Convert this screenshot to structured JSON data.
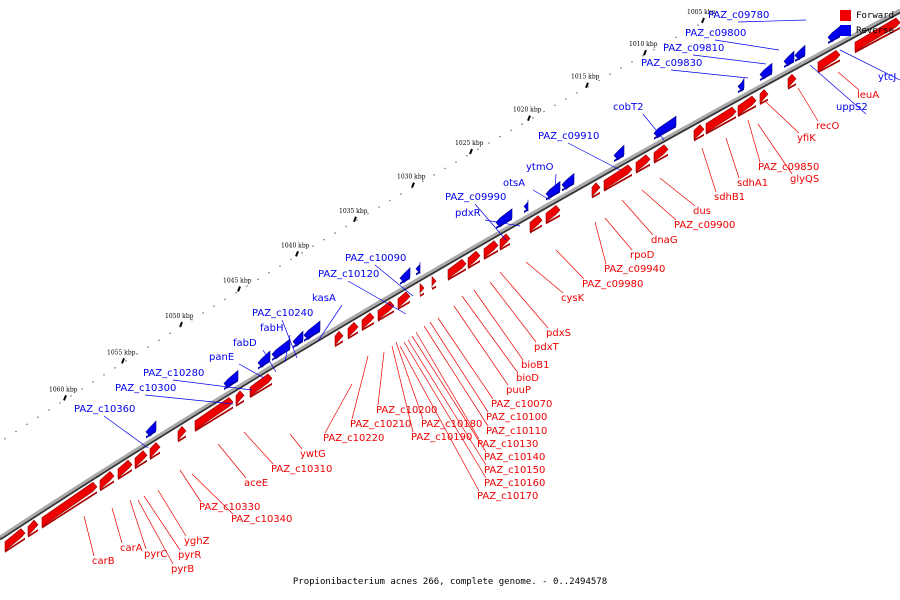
{
  "caption": "Propionibacterium acnes 266, complete genome. - 0..2494578",
  "legend": [
    {
      "label": "Forward",
      "color": "#ee0000"
    },
    {
      "label": "Reverse",
      "color": "#0000ee"
    }
  ],
  "colors": {
    "forward": "#ee0000",
    "reverse": "#0000ee",
    "backbone": "#888888"
  },
  "ticks": [
    {
      "kbp": 1000,
      "label": "1000 kbp"
    },
    {
      "kbp": 1005,
      "label": "1005 kbp"
    },
    {
      "kbp": 1010,
      "label": "1010 kbp"
    },
    {
      "kbp": 1015,
      "label": "1015 kbp"
    },
    {
      "kbp": 1020,
      "label": "1020 kbp"
    },
    {
      "kbp": 1025,
      "label": "1025 kbp"
    },
    {
      "kbp": 1030,
      "label": "1030 kbp"
    },
    {
      "kbp": 1035,
      "label": "1035 kbp"
    },
    {
      "kbp": 1040,
      "label": "1040 kbp"
    },
    {
      "kbp": 1045,
      "label": "1045 kbp"
    },
    {
      "kbp": 1050,
      "label": "1050 kbp"
    },
    {
      "kbp": 1055,
      "label": "1055 kbp"
    },
    {
      "kbp": 1060,
      "label": "1060 kbp"
    }
  ],
  "reverse_labels": [
    "PAZ_c09780",
    "PAZ_c09800",
    "PAZ_c09810",
    "PAZ_c09830",
    "cobT2",
    "PAZ_c09910",
    "ytmO",
    "otsA",
    "PAZ_c09990",
    "pdxR",
    "PAZ_c10090",
    "PAZ_c10120",
    "kasA",
    "PAZ_c10240",
    "fabH",
    "fabD",
    "panE",
    "PAZ_c10280",
    "PAZ_c10300",
    "PAZ_c10360",
    "ytcJ",
    "uppS2"
  ],
  "forward_labels": [
    "leuA",
    "recO",
    "yfiK",
    "PAZ_c09850",
    "glyQS",
    "sdhA1",
    "sdhB1",
    "dus",
    "PAZ_c09900",
    "dnaG",
    "rpoD",
    "PAZ_c09940",
    "PAZ_c09980",
    "cysK",
    "pdxS",
    "pdxT",
    "bioB1",
    "bioD",
    "puuP",
    "PAZ_c10070",
    "PAZ_c10100",
    "PAZ_c10110",
    "PAZ_c10130",
    "PAZ_c10140",
    "PAZ_c10150",
    "PAZ_c10160",
    "PAZ_c10170",
    "PAZ_c10180",
    "PAZ_c10190",
    "PAZ_c10200",
    "PAZ_c10210",
    "PAZ_c10220",
    "ywtG",
    "PAZ_c10310",
    "aceE",
    "PAZ_c10330",
    "PAZ_c10340",
    "yghZ",
    "pyrR",
    "pyrB",
    "pyrC",
    "carA",
    "carB"
  ]
}
